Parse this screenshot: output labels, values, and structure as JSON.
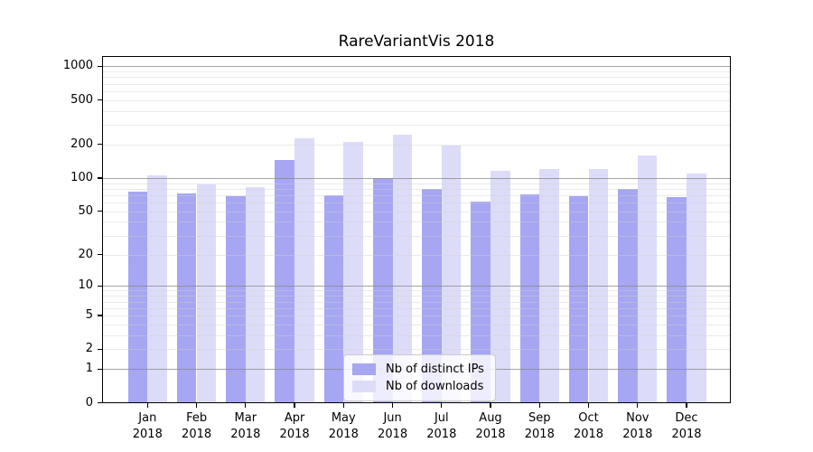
{
  "chart_data": {
    "type": "bar",
    "title": "RareVariantVis 2018",
    "categories": [
      "Jan",
      "Feb",
      "Mar",
      "Apr",
      "May",
      "Jun",
      "Jul",
      "Aug",
      "Sep",
      "Oct",
      "Nov",
      "Dec"
    ],
    "category_year": "2018",
    "series": [
      {
        "name": "Nb of distinct IPs",
        "color": "#a6a6f2",
        "values": [
          75,
          73,
          69,
          145,
          70,
          100,
          79,
          61,
          71,
          69,
          79,
          67
        ]
      },
      {
        "name": "Nb of downloads",
        "color": "#dcdcf8",
        "values": [
          105,
          88,
          82,
          228,
          210,
          245,
          194,
          115,
          120,
          120,
          158,
          110
        ]
      }
    ],
    "xlabel": "",
    "ylabel": "",
    "y_axis": {
      "scale": "log10(value+1)",
      "ticks": [
        1000,
        500,
        200,
        100,
        50,
        20,
        10,
        5,
        2,
        1,
        0
      ],
      "ylim": [
        0,
        1240
      ]
    },
    "grid": {
      "enabled": true,
      "drawn_above_bars": true,
      "major_values": [
        1,
        10,
        100,
        1000
      ],
      "minor_values": [
        2,
        3,
        4,
        5,
        6,
        7,
        8,
        9,
        20,
        30,
        40,
        50,
        60,
        70,
        80,
        90,
        200,
        300,
        400,
        500,
        600,
        700,
        800,
        900
      ]
    },
    "legend": {
      "position": "lower-center",
      "entries": [
        "Nb of distinct IPs",
        "Nb of downloads"
      ]
    },
    "colors": {
      "background": "#ffffff",
      "spine": "#000000",
      "major_grid": "#878787",
      "minor_grid": "#d0d0d0",
      "legend_border": "#cccccc"
    }
  }
}
